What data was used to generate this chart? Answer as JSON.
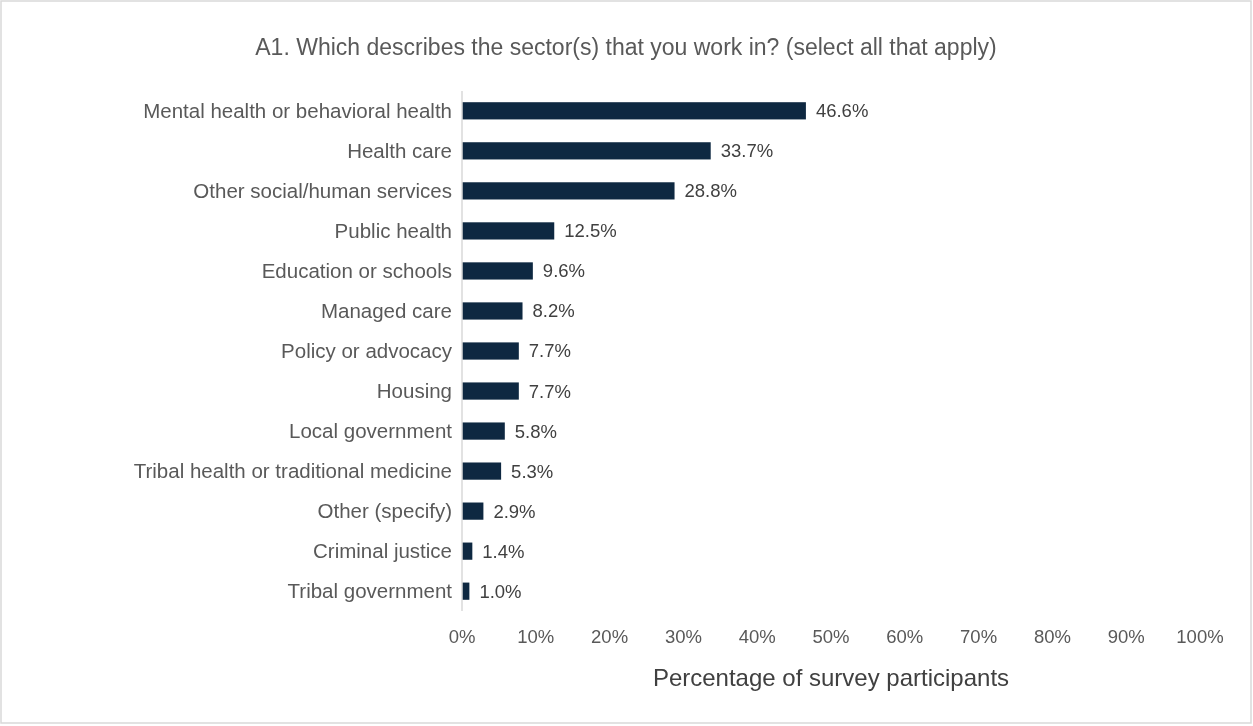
{
  "chart_data": {
    "type": "bar",
    "orientation": "horizontal",
    "title": "A1. Which describes the sector(s) that you work in? (select all that apply)",
    "xlabel": "Percentage of survey participants",
    "categories": [
      "Mental health or behavioral health",
      "Health care",
      "Other social/human services",
      "Public health",
      "Education or schools",
      "Managed care",
      "Policy or advocacy",
      "Housing",
      "Local government",
      "Tribal health or traditional medicine",
      "Other (specify)",
      "Criminal justice",
      "Tribal government"
    ],
    "values": [
      46.6,
      33.7,
      28.8,
      12.5,
      9.6,
      8.2,
      7.7,
      7.7,
      5.8,
      5.3,
      2.9,
      1.4,
      1.0
    ],
    "value_labels": [
      "46.6%",
      "33.7%",
      "28.8%",
      "12.5%",
      "9.6%",
      "8.2%",
      "7.7%",
      "7.7%",
      "5.8%",
      "5.3%",
      "2.9%",
      "1.4%",
      "1.0%"
    ],
    "color": "#0e2841",
    "xlim": [
      0,
      100
    ],
    "xticks": [
      {
        "value": 0,
        "label": "0%"
      },
      {
        "value": 10,
        "label": "10%"
      },
      {
        "value": 20,
        "label": "20%"
      },
      {
        "value": 30,
        "label": "30%"
      },
      {
        "value": 40,
        "label": "40%"
      },
      {
        "value": 50,
        "label": "50%"
      },
      {
        "value": 60,
        "label": "60%"
      },
      {
        "value": 70,
        "label": "70%"
      },
      {
        "value": 80,
        "label": "80%"
      },
      {
        "value": 90,
        "label": "90%"
      },
      {
        "value": 100,
        "label": "100%"
      }
    ],
    "grid": false
  }
}
